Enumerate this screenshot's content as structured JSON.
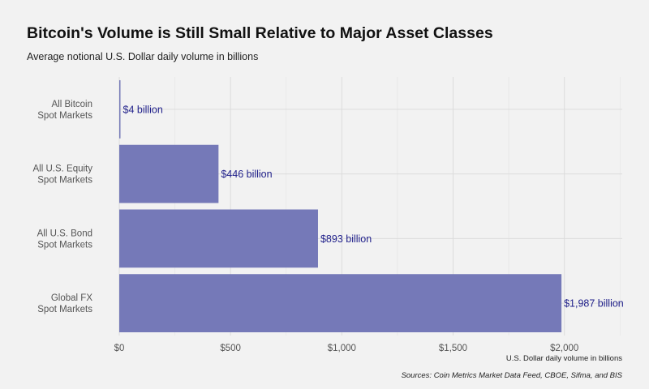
{
  "chart_data": {
    "type": "bar",
    "orientation": "horizontal",
    "title": "Bitcoin's Volume is Still Small Relative to Major Asset Classes",
    "subtitle": "Average notional U.S. Dollar daily volume in billions",
    "xlabel": "U.S. Dollar daily volume in billions",
    "ylabel": "",
    "categories": [
      [
        "All Bitcoin",
        "Spot Markets"
      ],
      [
        "All U.S. Equity",
        "Spot Markets"
      ],
      [
        "All U.S. Bond",
        "Spot Markets"
      ],
      [
        "Global FX",
        "Spot Markets"
      ]
    ],
    "values": [
      4,
      446,
      893,
      1987
    ],
    "value_labels": [
      "$4 billion",
      "$446 billion",
      "$893 billion",
      "$1,987 billion"
    ],
    "xlim": [
      0,
      2260
    ],
    "xticks": [
      0,
      500,
      1000,
      1500,
      2000
    ],
    "xtick_labels": [
      "$0",
      "$500",
      "$1,000",
      "$1,500",
      "$2,000"
    ],
    "grid": true,
    "bar_color": "#7579b8",
    "label_color": "#1f1f8a",
    "source": "Sources: Coin Metrics Market Data Feed, CBOE, Sifma, and BIS"
  }
}
